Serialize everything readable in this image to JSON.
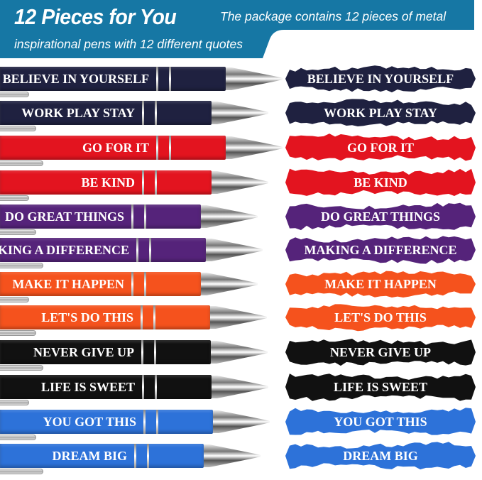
{
  "header": {
    "title": "12 Pieces for You",
    "subtitle_line1": "The package contains 12 pieces of metal",
    "subtitle_line2": "inspirational pens with 12 different quotes",
    "banner_color": "#1677a4"
  },
  "pens": [
    {
      "quote": "BELIEVE IN YOURSELF",
      "color": "#1f2140"
    },
    {
      "quote": "WORK PLAY STAY",
      "color": "#1f2140"
    },
    {
      "quote": "GO FOR IT",
      "color": "#e3141f"
    },
    {
      "quote": "BE KIND",
      "color": "#e3141f"
    },
    {
      "quote": "DO GREAT THINGS",
      "color": "#55237a"
    },
    {
      "quote": "MAKING A DIFFERENCE",
      "color": "#55237a"
    },
    {
      "quote": "MAKE IT HAPPEN",
      "color": "#f5521d"
    },
    {
      "quote": "LET'S DO THIS",
      "color": "#f5521d"
    },
    {
      "quote": "NEVER GIVE UP",
      "color": "#111111"
    },
    {
      "quote": "LIFE IS SWEET",
      "color": "#111111"
    },
    {
      "quote": "YOU GOT THIS",
      "color": "#2d72d9"
    },
    {
      "quote": "DREAM BIG",
      "color": "#2d72d9"
    }
  ]
}
